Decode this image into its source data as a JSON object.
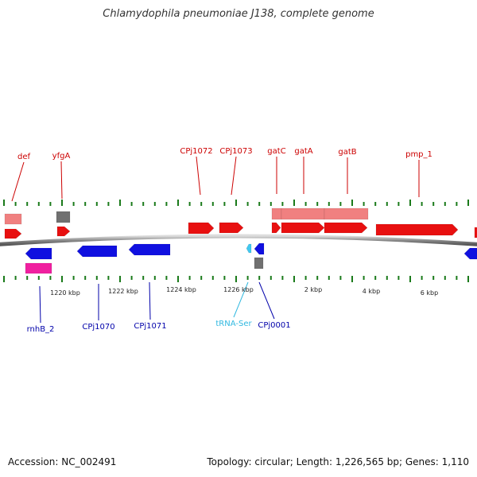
{
  "title": "Chlamydophila pneumoniae J138, complete genome",
  "footer": {
    "accession": "Accession: NC_002491",
    "summary": "Topology: circular; Length: 1,226,565 bp; Genes: 1,110"
  },
  "colors": {
    "cds": "#e81010",
    "cds_light": "#f08080",
    "cds_complement": "#1010e0",
    "gray_feature": "#707070",
    "magenta_feature": "#f020a0",
    "trna": "#40c8f0",
    "tick": "#1a7a1a",
    "backbone": "#888888",
    "label_forward": "#cc0000",
    "label_reverse": "#0000aa",
    "label_trna": "#30b8e0"
  },
  "scale_labels": [
    "1220 kbp",
    "1222 kbp",
    "1224 kbp",
    "1226 kbp",
    "2 kbp",
    "4 kbp",
    "6 kbp"
  ],
  "features_forward": [
    {
      "name": "def",
      "color": "cds_light"
    },
    {
      "name": "def",
      "color": "cds"
    },
    {
      "name": "yfgA",
      "color": "gray_feature"
    },
    {
      "name": "yfgA",
      "color": "cds"
    },
    {
      "name": "CPj1072",
      "color": "cds"
    },
    {
      "name": "CPj1073",
      "color": "cds"
    },
    {
      "name": "gatC",
      "color": "cds_light"
    },
    {
      "name": "gatC",
      "color": "cds"
    },
    {
      "name": "gatA",
      "color": "cds_light"
    },
    {
      "name": "gatA",
      "color": "cds"
    },
    {
      "name": "gatB",
      "color": "cds_light"
    },
    {
      "name": "gatB",
      "color": "cds"
    },
    {
      "name": "pmp_1",
      "color": "cds"
    },
    {
      "name": "edge-forward",
      "color": "cds"
    }
  ],
  "features_reverse": [
    {
      "name": "rnhB_2",
      "color": "cds_complement"
    },
    {
      "name": "rnhB_2",
      "color": "magenta_feature"
    },
    {
      "name": "CPj1070",
      "color": "cds_complement"
    },
    {
      "name": "CPj1071",
      "color": "cds_complement"
    },
    {
      "name": "tRNA-Ser",
      "color": "trna"
    },
    {
      "name": "CPj0001",
      "color": "cds_complement"
    },
    {
      "name": "CPj0001",
      "color": "gray_feature"
    },
    {
      "name": "edge-reverse",
      "color": "cds_complement"
    }
  ],
  "labels_forward": [
    "def",
    "yfgA",
    "CPj1072",
    "CPj1073",
    "gatC",
    "gatA",
    "gatB",
    "pmp_1"
  ],
  "labels_reverse": [
    "rnhB_2",
    "CPj1070",
    "CPj1071",
    "tRNA-Ser",
    "CPj0001"
  ]
}
